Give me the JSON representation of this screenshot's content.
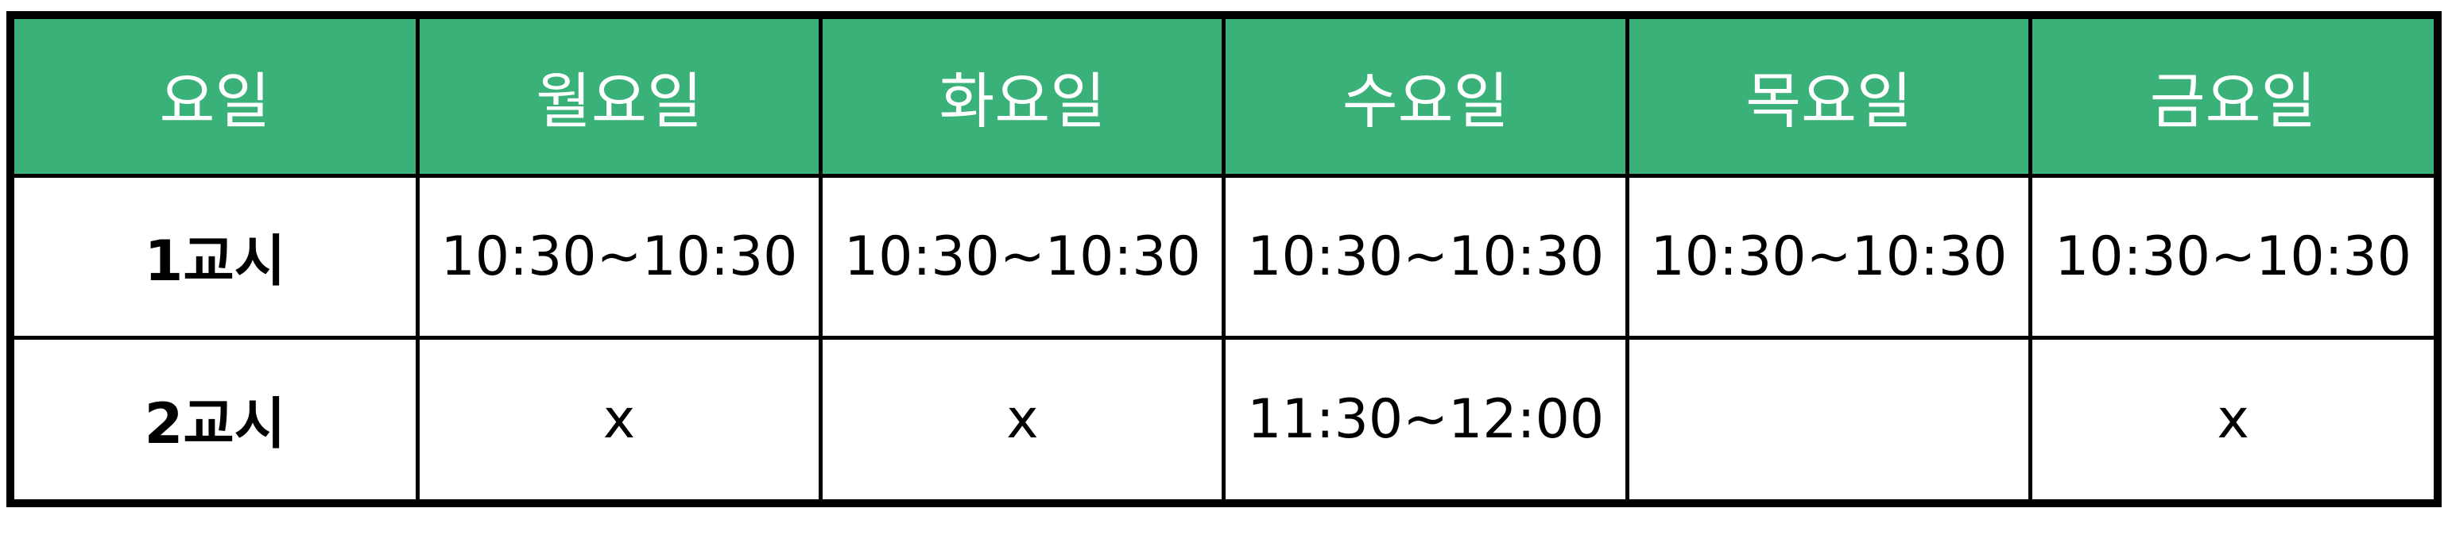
{
  "theme": {
    "header_bg": "#3bb17a",
    "header_text": "#ffffff",
    "border": "#000000",
    "body_bg": "#ffffff"
  },
  "table": {
    "headers": [
      "요일",
      "월요일",
      "화요일",
      "수요일",
      "목요일",
      "금요일"
    ],
    "rows": [
      {
        "period": "1교시",
        "cells": [
          "10:30~10:30",
          "10:30~10:30",
          "10:30~10:30",
          "10:30~10:30",
          "10:30~10:30"
        ]
      },
      {
        "period": "2교시",
        "cells": [
          "x",
          "x",
          "11:30~12:00",
          "",
          "x"
        ]
      }
    ]
  }
}
